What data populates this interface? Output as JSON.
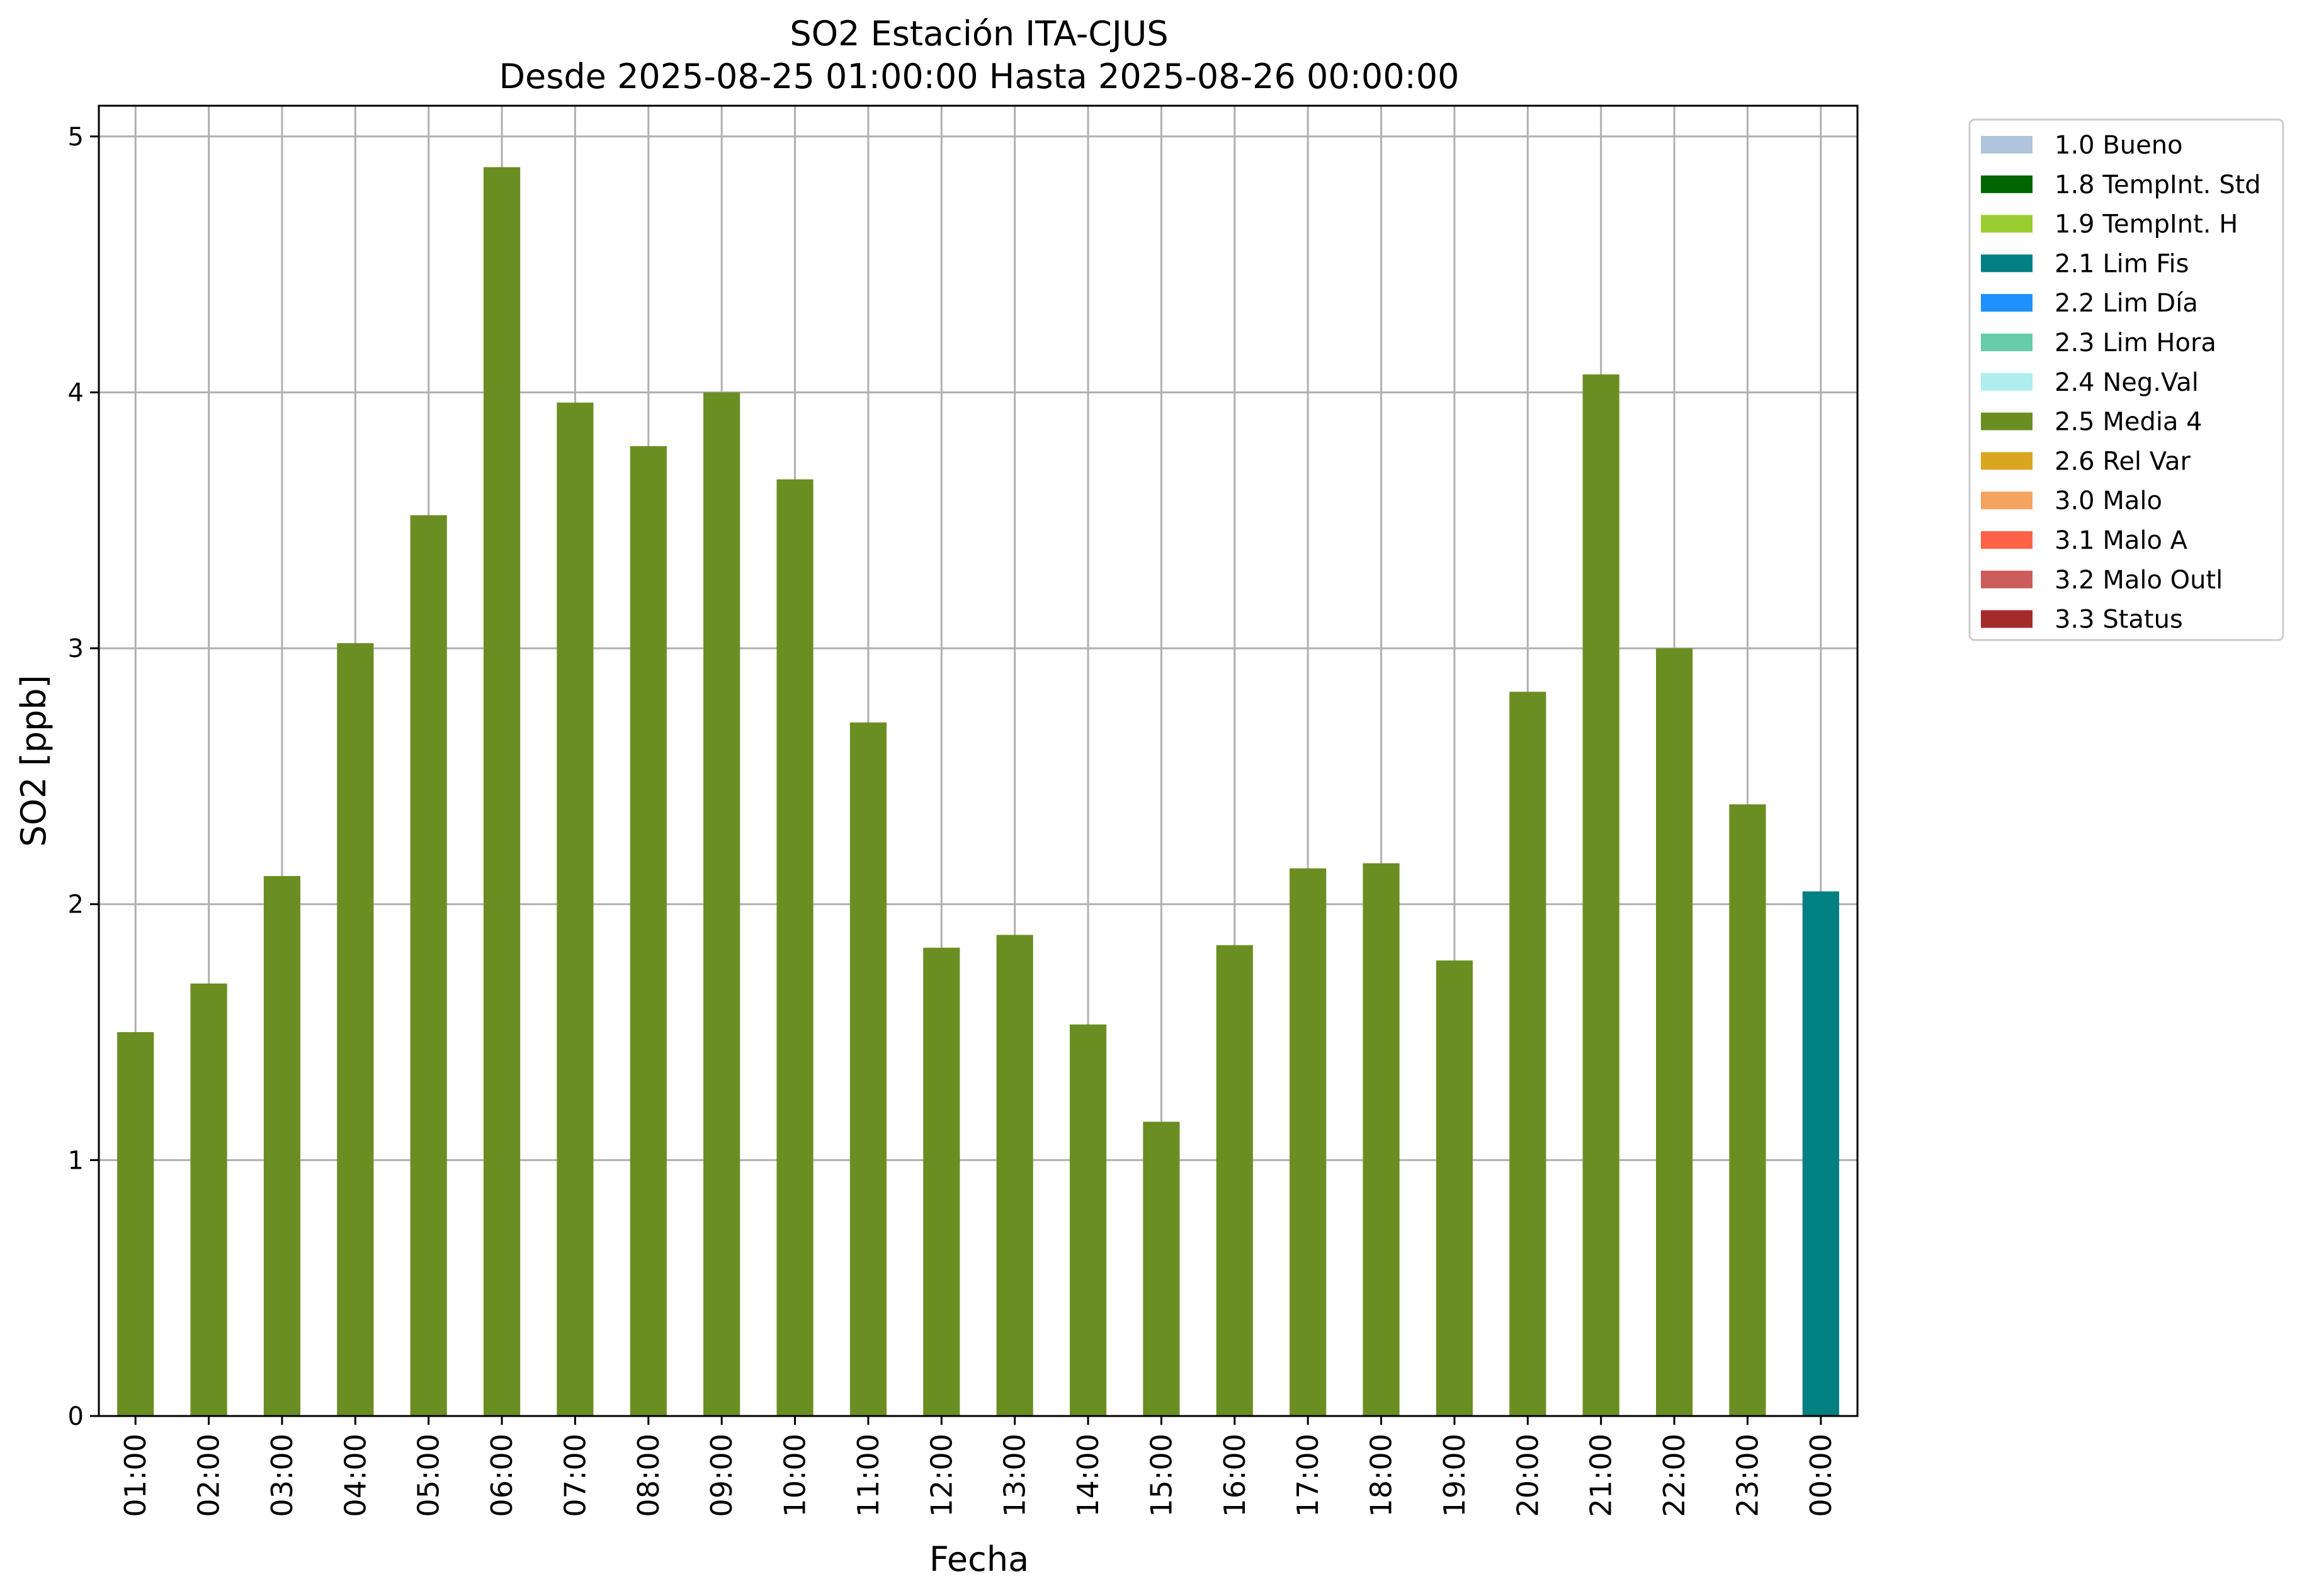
{
  "chart_data": {
    "type": "bar",
    "title": "SO2 Estación ITA-CJUS",
    "subtitle": "Desde 2025-08-25 01:00:00 Hasta 2025-08-26 00:00:00",
    "xlabel": "Fecha",
    "ylabel": "SO2 [ppb]",
    "ylim": [
      0,
      5.12
    ],
    "yticks": [
      0,
      1,
      2,
      3,
      4,
      5
    ],
    "grid": true,
    "legend_position": "outside-right",
    "categories": [
      "01:00",
      "02:00",
      "03:00",
      "04:00",
      "05:00",
      "06:00",
      "07:00",
      "08:00",
      "09:00",
      "10:00",
      "11:00",
      "12:00",
      "13:00",
      "14:00",
      "15:00",
      "16:00",
      "17:00",
      "18:00",
      "19:00",
      "20:00",
      "21:00",
      "22:00",
      "23:00",
      "00:00"
    ],
    "values": [
      1.5,
      1.69,
      2.11,
      3.02,
      3.52,
      4.88,
      3.96,
      3.79,
      4.0,
      3.66,
      2.71,
      1.83,
      1.88,
      1.53,
      1.15,
      1.84,
      2.14,
      2.16,
      1.78,
      2.83,
      4.07,
      3.0,
      2.39,
      2.05
    ],
    "bar_flags": [
      "2.5 Media 4",
      "2.5 Media 4",
      "2.5 Media 4",
      "2.5 Media 4",
      "2.5 Media 4",
      "2.5 Media 4",
      "2.5 Media 4",
      "2.5 Media 4",
      "2.5 Media 4",
      "2.5 Media 4",
      "2.5 Media 4",
      "2.5 Media 4",
      "2.5 Media 4",
      "2.5 Media 4",
      "2.5 Media 4",
      "2.5 Media 4",
      "2.5 Media 4",
      "2.5 Media 4",
      "2.5 Media 4",
      "2.5 Media 4",
      "2.5 Media 4",
      "2.5 Media 4",
      "2.5 Media 4",
      "2.1 Lim Fis"
    ],
    "legend": [
      {
        "label": "1.0 Bueno",
        "color": "#b0c4de"
      },
      {
        "label": "1.8 TempInt. Std",
        "color": "#006400"
      },
      {
        "label": "1.9 TempInt. H",
        "color": "#9acd32"
      },
      {
        "label": "2.1 Lim Fis",
        "color": "#008080"
      },
      {
        "label": "2.2 Lim Día",
        "color": "#1e90ff"
      },
      {
        "label": "2.3 Lim Hora",
        "color": "#66cdaa"
      },
      {
        "label": "2.4 Neg.Val",
        "color": "#afeeee"
      },
      {
        "label": "2.5 Media 4",
        "color": "#6b8e23"
      },
      {
        "label": "2.6 Rel Var",
        "color": "#daa520"
      },
      {
        "label": "3.0 Malo",
        "color": "#f4a460"
      },
      {
        "label": "3.1 Malo A",
        "color": "#ff6347"
      },
      {
        "label": "3.2 Malo Outl",
        "color": "#cd5c5c"
      },
      {
        "label": "3.3 Status",
        "color": "#a52a2a"
      }
    ]
  }
}
